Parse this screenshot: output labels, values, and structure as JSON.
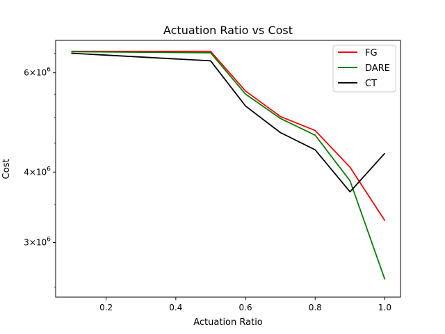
{
  "chart_data": {
    "type": "line",
    "title": "Actuation Ratio vs Cost",
    "xlabel": "Actuation Ratio",
    "ylabel": "Cost",
    "x_scale": "linear",
    "y_scale": "log",
    "xlim": [
      0.055,
      1.045
    ],
    "ylim": [
      2400000,
      6850000
    ],
    "x_ticks": [
      0.2,
      0.4,
      0.6,
      0.8,
      1.0
    ],
    "x_tick_labels": [
      "0.2",
      "0.4",
      "0.6",
      "0.8",
      "1.0"
    ],
    "y_ticks": [
      3000000,
      4000000,
      6000000
    ],
    "y_tick_labels": [
      {
        "base": "3",
        "times": "×",
        "ten": "10",
        "exp": "6"
      },
      {
        "base": "4",
        "times": "×",
        "ten": "10",
        "exp": "6"
      },
      {
        "base": "6",
        "times": "×",
        "ten": "10",
        "exp": "6"
      }
    ],
    "x": [
      0.1,
      0.5,
      0.6,
      0.7,
      0.8,
      0.9,
      1.0
    ],
    "series": [
      {
        "name": "FG",
        "color": "#ff0000",
        "values": [
          6550000,
          6550000,
          5570000,
          5020000,
          4740000,
          4080000,
          3280000
        ]
      },
      {
        "name": "DARE",
        "color": "#008000",
        "values": [
          6540000,
          6510000,
          5500000,
          4980000,
          4650000,
          3860000,
          2580000
        ]
      },
      {
        "name": "CT",
        "color": "#000000",
        "values": [
          6500000,
          6300000,
          5240000,
          4700000,
          4380000,
          3690000,
          4320000
        ]
      }
    ],
    "grid": false,
    "legend_position": "upper right"
  }
}
